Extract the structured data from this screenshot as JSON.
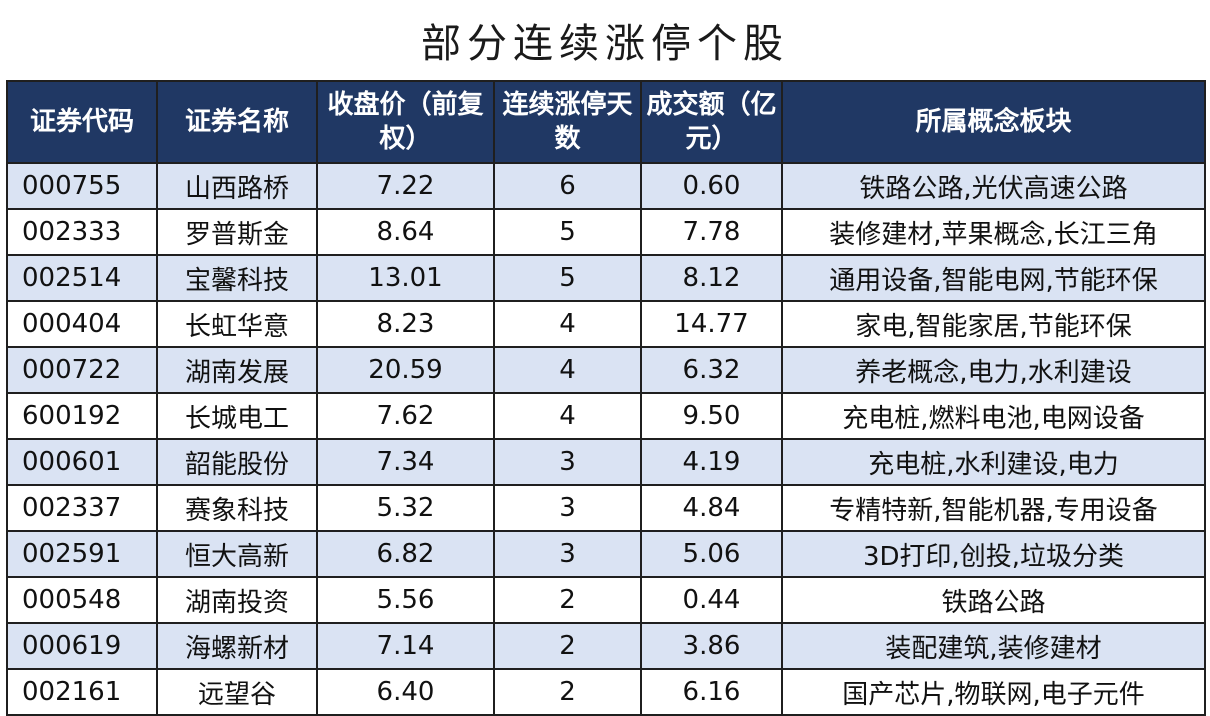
{
  "title": "部分连续涨停个股",
  "headers": [
    "证券代码",
    "证券名称",
    "收盘价（前复权）",
    "连续涨停天数",
    "成交额（亿元）",
    "所属概念板块"
  ],
  "rows": [
    [
      "000755",
      "山西路桥",
      "7.22",
      "6",
      "0.60",
      "铁路公路,光伏高速公路"
    ],
    [
      "002333",
      "罗普斯金",
      "8.64",
      "5",
      "7.78",
      "装修建材,苹果概念,长江三角"
    ],
    [
      "002514",
      "宝馨科技",
      "13.01",
      "5",
      "8.12",
      "通用设备,智能电网,节能环保"
    ],
    [
      "000404",
      "长虹华意",
      "8.23",
      "4",
      "14.77",
      "家电,智能家居,节能环保"
    ],
    [
      "000722",
      "湖南发展",
      "20.59",
      "4",
      "6.32",
      "养老概念,电力,水利建设"
    ],
    [
      "600192",
      "长城电工",
      "7.62",
      "4",
      "9.50",
      "充电桩,燃料电池,电网设备"
    ],
    [
      "000601",
      "韶能股份",
      "7.34",
      "3",
      "4.19",
      "充电桩,水利建设,电力"
    ],
    [
      "002337",
      "赛象科技",
      "5.32",
      "3",
      "4.84",
      "专精特新,智能机器,专用设备"
    ],
    [
      "002591",
      "恒大高新",
      "6.82",
      "3",
      "5.06",
      "3D打印,创投,垃圾分类"
    ],
    [
      "000548",
      "湖南投资",
      "5.56",
      "2",
      "0.44",
      "铁路公路"
    ],
    [
      "000619",
      "海螺新材",
      "7.14",
      "2",
      "3.86",
      "装配建筑,装修建材"
    ],
    [
      "002161",
      "远望谷",
      "6.40",
      "2",
      "6.16",
      "国产芯片,物联网,电子元件"
    ]
  ]
}
